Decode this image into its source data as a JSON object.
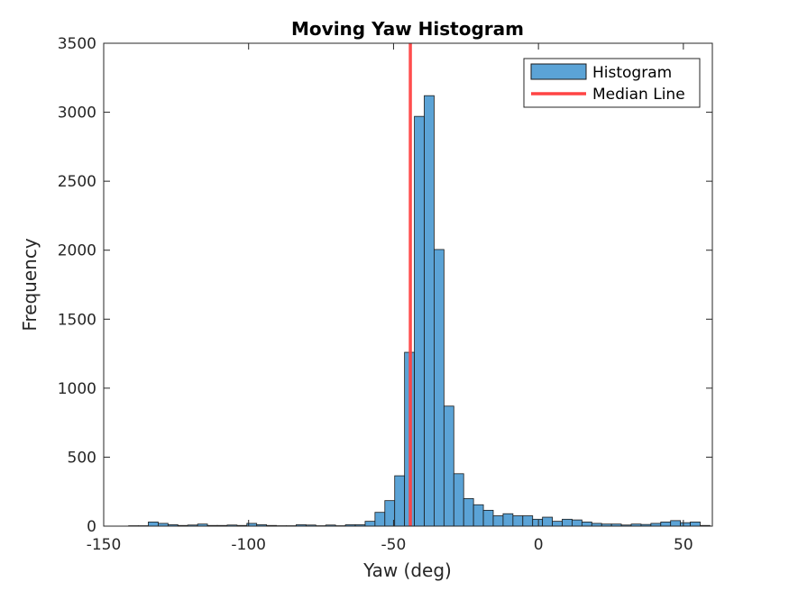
{
  "chart_data": {
    "type": "bar",
    "title": "Moving Yaw Histogram",
    "xlabel": "Yaw (deg)",
    "ylabel": "Frequency",
    "xlim": [
      -150,
      60
    ],
    "ylim": [
      0,
      3500
    ],
    "xticks": [
      -150,
      -100,
      -50,
      0,
      50
    ],
    "yticks": [
      0,
      500,
      1000,
      1500,
      2000,
      2500,
      3000,
      3500
    ],
    "bin_width": 3.4,
    "grid": false,
    "legend_position": "top-right",
    "colors": {
      "bar_fill": "#5ba3d6",
      "bar_edge": "#1a1a1a",
      "median": "#ff4444"
    },
    "series": [
      {
        "name": "Histogram",
        "bins": [
          [
            -141.4,
            3
          ],
          [
            -138.0,
            3
          ],
          [
            -134.6,
            30
          ],
          [
            -131.2,
            20
          ],
          [
            -127.8,
            10
          ],
          [
            -124.4,
            5
          ],
          [
            -121.0,
            8
          ],
          [
            -117.6,
            15
          ],
          [
            -114.2,
            5
          ],
          [
            -110.8,
            5
          ],
          [
            -107.4,
            8
          ],
          [
            -104.0,
            5
          ],
          [
            -100.6,
            20
          ],
          [
            -97.2,
            10
          ],
          [
            -93.8,
            5
          ],
          [
            -90.4,
            3
          ],
          [
            -87.0,
            3
          ],
          [
            -83.6,
            10
          ],
          [
            -80.2,
            8
          ],
          [
            -76.8,
            3
          ],
          [
            -73.4,
            8
          ],
          [
            -70.0,
            3
          ],
          [
            -66.6,
            10
          ],
          [
            -63.2,
            10
          ],
          [
            -59.8,
            35
          ],
          [
            -56.4,
            100
          ],
          [
            -53.0,
            185
          ],
          [
            -49.6,
            365
          ],
          [
            -46.2,
            1260
          ],
          [
            -42.8,
            2970
          ],
          [
            -39.4,
            3120
          ],
          [
            -36.0,
            2005
          ],
          [
            -32.6,
            870
          ],
          [
            -29.2,
            380
          ],
          [
            -25.8,
            200
          ],
          [
            -22.4,
            155
          ],
          [
            -19.0,
            115
          ],
          [
            -15.6,
            75
          ],
          [
            -12.2,
            90
          ],
          [
            -8.8,
            75
          ],
          [
            -5.4,
            75
          ],
          [
            -2.0,
            50
          ],
          [
            1.4,
            65
          ],
          [
            4.8,
            35
          ],
          [
            8.2,
            50
          ],
          [
            11.6,
            45
          ],
          [
            15.0,
            30
          ],
          [
            18.4,
            20
          ],
          [
            21.8,
            15
          ],
          [
            25.2,
            15
          ],
          [
            28.6,
            8
          ],
          [
            32.0,
            15
          ],
          [
            35.4,
            12
          ],
          [
            38.8,
            20
          ],
          [
            42.2,
            30
          ],
          [
            45.6,
            40
          ],
          [
            49.0,
            25
          ],
          [
            52.4,
            30
          ],
          [
            55.8,
            5
          ]
        ]
      },
      {
        "name": "Median Line",
        "x": -44.2
      }
    ]
  }
}
